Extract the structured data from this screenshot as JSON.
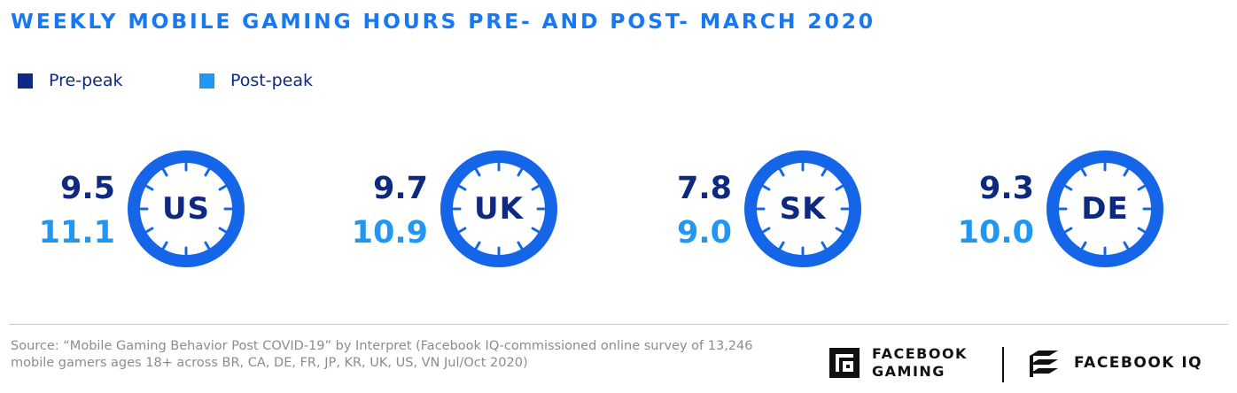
{
  "chart_data": {
    "type": "table",
    "title": "WEEKLY MOBILE GAMING HOURS PRE- AND POST- MARCH 2020",
    "series": [
      {
        "name": "Pre-peak",
        "color": "#0e2a80",
        "values": [
          9.5,
          9.7,
          7.8,
          9.3
        ]
      },
      {
        "name": "Post-peak",
        "color": "#2196f3",
        "values": [
          11.1,
          10.9,
          9.0,
          10.0
        ]
      }
    ],
    "categories": [
      "US",
      "UK",
      "SK",
      "DE"
    ],
    "value_labels": {
      "pre": [
        "9.5",
        "9.7",
        "7.8",
        "9.3"
      ],
      "post": [
        "11.1",
        "10.9",
        "9.0",
        "10.0"
      ]
    },
    "clock_color": "#1565e8"
  },
  "legend": {
    "pre_label": "Pre-peak",
    "post_label": "Post-peak",
    "pre_color": "#0e2a80",
    "post_color": "#2196f3"
  },
  "footer": {
    "source": "Source: “Mobile Gaming Behavior Post COVID-19” by Interpret (Facebook IQ-commissioned online survey of 13,246 mobile gamers ages 18+ across BR, CA, DE, FR, JP, KR, UK, US, VN Jul/Oct 2020)",
    "brand_gaming_line1": "FACEBOOK",
    "brand_gaming_line2": "GAMING",
    "brand_iq": "FACEBOOK IQ"
  }
}
